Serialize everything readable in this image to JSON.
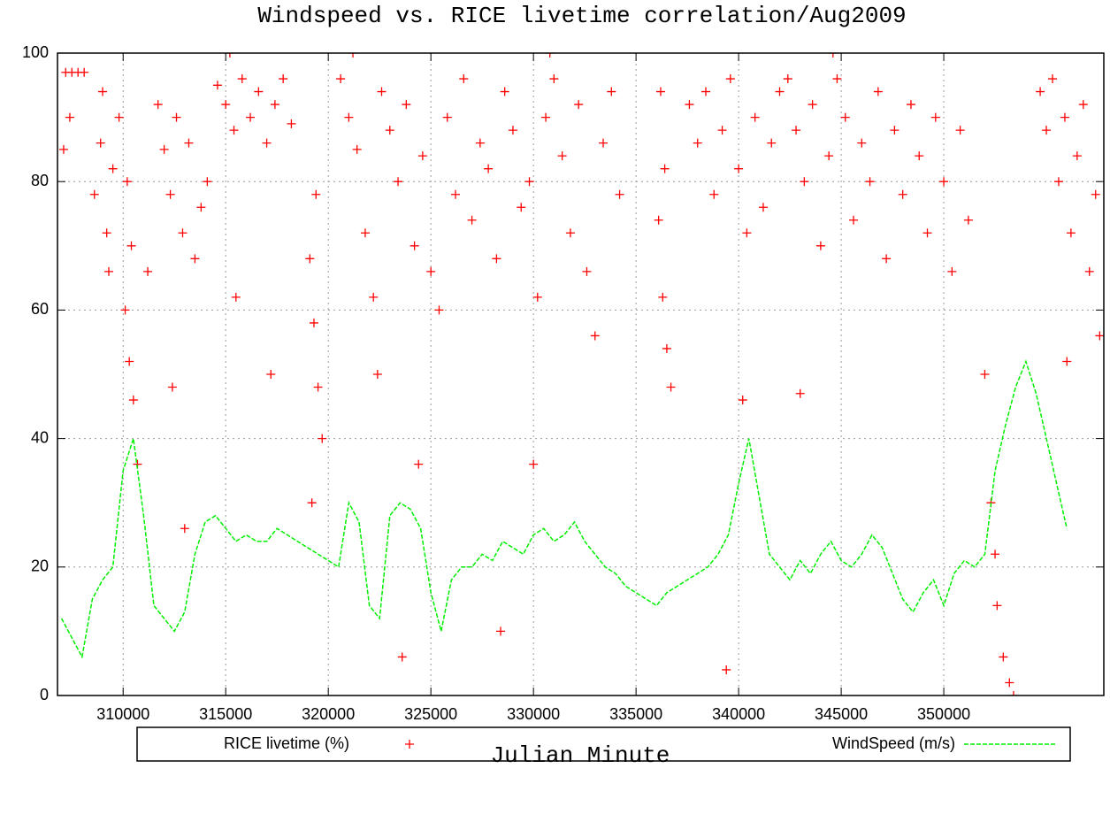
{
  "chart_data": {
    "type": "scatter",
    "title": "Windspeed vs. RICE livetime correlation/Aug2009",
    "x_label": "Julian Minute",
    "xlim": [
      306800,
      357800
    ],
    "xticks": [
      310000,
      315000,
      320000,
      325000,
      330000,
      335000,
      340000,
      345000,
      350000
    ],
    "ylim": [
      0,
      100
    ],
    "yticks": [
      0,
      20,
      40,
      60,
      80,
      100
    ],
    "grid": true,
    "legend": "bottom",
    "series": [
      {
        "name": "RICE livetime (%)",
        "type": "scatter",
        "color": "#ff0000",
        "x": [
          307200,
          307500,
          307800,
          308100,
          307100,
          307400,
          308600,
          308900,
          309200,
          309500,
          309800,
          309300,
          309000,
          310100,
          310300,
          310500,
          310400,
          310700,
          310200,
          311700,
          312000,
          312300,
          312600,
          312900,
          313200,
          313500,
          313800,
          314100,
          312400,
          313000,
          311200,
          314600,
          315000,
          315400,
          315800,
          316200,
          316600,
          317000,
          317400,
          317800,
          318200,
          315500,
          317200,
          319100,
          319300,
          319500,
          319700,
          319200,
          319400,
          320600,
          321000,
          321400,
          321800,
          322200,
          322400,
          322600,
          323000,
          323400,
          323800,
          324200,
          324600,
          325000,
          325400,
          325800,
          326200,
          326600,
          327000,
          327400,
          327800,
          328200,
          328600,
          329000,
          329400,
          329800,
          330200,
          330600,
          331000,
          331400,
          331800,
          332200,
          332600,
          333000,
          333400,
          333800,
          334200,
          323600,
          324400,
          328400,
          330000,
          336100,
          336300,
          336500,
          336700,
          336400,
          336200,
          337600,
          338000,
          338400,
          338800,
          339200,
          339600,
          340000,
          340400,
          340800,
          341200,
          341600,
          342000,
          342400,
          342800,
          343200,
          343600,
          344000,
          344400,
          344800,
          345200,
          345600,
          346000,
          346400,
          346800,
          347200,
          347600,
          348000,
          348400,
          348800,
          349200,
          349600,
          350000,
          350400,
          350800,
          351200,
          339400,
          340200,
          343000,
          352000,
          352300,
          352600,
          352900,
          353200,
          353400,
          352500,
          354700,
          355000,
          355300,
          355600,
          355900,
          356200,
          356500,
          356800,
          357100,
          357400,
          357600,
          356000,
          315200,
          321200,
          330800,
          344600
        ],
        "values": [
          97,
          97,
          97,
          97,
          85,
          90,
          78,
          86,
          72,
          82,
          90,
          66,
          94,
          60,
          52,
          46,
          70,
          36,
          80,
          92,
          85,
          78,
          90,
          72,
          86,
          68,
          76,
          80,
          48,
          26,
          66,
          95,
          92,
          88,
          96,
          90,
          94,
          86,
          92,
          96,
          89,
          62,
          50,
          68,
          58,
          48,
          40,
          30,
          78,
          96,
          90,
          85,
          72,
          62,
          50,
          94,
          88,
          80,
          92,
          70,
          84,
          66,
          60,
          90,
          78,
          96,
          74,
          86,
          82,
          68,
          94,
          88,
          76,
          80,
          62,
          90,
          96,
          84,
          72,
          92,
          66,
          56,
          86,
          94,
          78,
          6,
          36,
          10,
          36,
          74,
          62,
          54,
          48,
          82,
          94,
          92,
          86,
          94,
          78,
          88,
          96,
          82,
          72,
          90,
          76,
          86,
          94,
          96,
          88,
          80,
          92,
          70,
          84,
          96,
          90,
          74,
          86,
          80,
          94,
          68,
          88,
          78,
          92,
          84,
          72,
          90,
          80,
          66,
          88,
          74,
          4,
          46,
          47,
          50,
          30,
          14,
          6,
          2,
          0,
          22,
          94,
          88,
          96,
          80,
          90,
          72,
          84,
          92,
          66,
          78,
          56,
          52,
          100,
          100,
          100,
          100
        ]
      },
      {
        "name": "WindSpeed (m/s)",
        "type": "line",
        "color": "#00ee00",
        "x": [
          307000,
          307500,
          308000,
          308500,
          309000,
          309500,
          310000,
          310500,
          311000,
          311500,
          312000,
          312500,
          313000,
          313500,
          314000,
          314500,
          315000,
          315500,
          316000,
          316500,
          317000,
          317500,
          318000,
          318500,
          319000,
          319500,
          320000,
          320500,
          321000,
          321500,
          322000,
          322500,
          323000,
          323500,
          324000,
          324500,
          325000,
          325500,
          326000,
          326500,
          327000,
          327500,
          328000,
          328500,
          329000,
          329500,
          330000,
          330500,
          331000,
          331500,
          332000,
          332500,
          333000,
          333500,
          334000,
          334500,
          335000,
          335500,
          336000,
          336500,
          337000,
          337500,
          338000,
          338500,
          339000,
          339500,
          340000,
          340500,
          341000,
          341500,
          342000,
          342500,
          343000,
          343500,
          344000,
          344500,
          345000,
          345500,
          346000,
          346500,
          347000,
          347500,
          348000,
          348500,
          349000,
          349500,
          350000,
          350500,
          351000,
          351500,
          352000,
          352500,
          353000,
          353500,
          354000,
          354500,
          355000,
          355500,
          356000
        ],
        "values": [
          12,
          9,
          6,
          15,
          18,
          20,
          35,
          40,
          28,
          14,
          12,
          10,
          13,
          22,
          27,
          28,
          26,
          24,
          25,
          24,
          24,
          26,
          25,
          24,
          23,
          22,
          21,
          20,
          30,
          27,
          14,
          12,
          28,
          30,
          29,
          26,
          16,
          10,
          18,
          20,
          20,
          22,
          21,
          24,
          23,
          22,
          25,
          26,
          24,
          25,
          27,
          24,
          22,
          20,
          19,
          17,
          16,
          15,
          14,
          16,
          17,
          18,
          19,
          20,
          22,
          25,
          33,
          40,
          31,
          22,
          20,
          18,
          21,
          19,
          22,
          24,
          21,
          20,
          22,
          25,
          23,
          19,
          15,
          13,
          16,
          18,
          14,
          19,
          21,
          20,
          22,
          35,
          42,
          48,
          52,
          47,
          40,
          33,
          26
        ]
      }
    ]
  }
}
